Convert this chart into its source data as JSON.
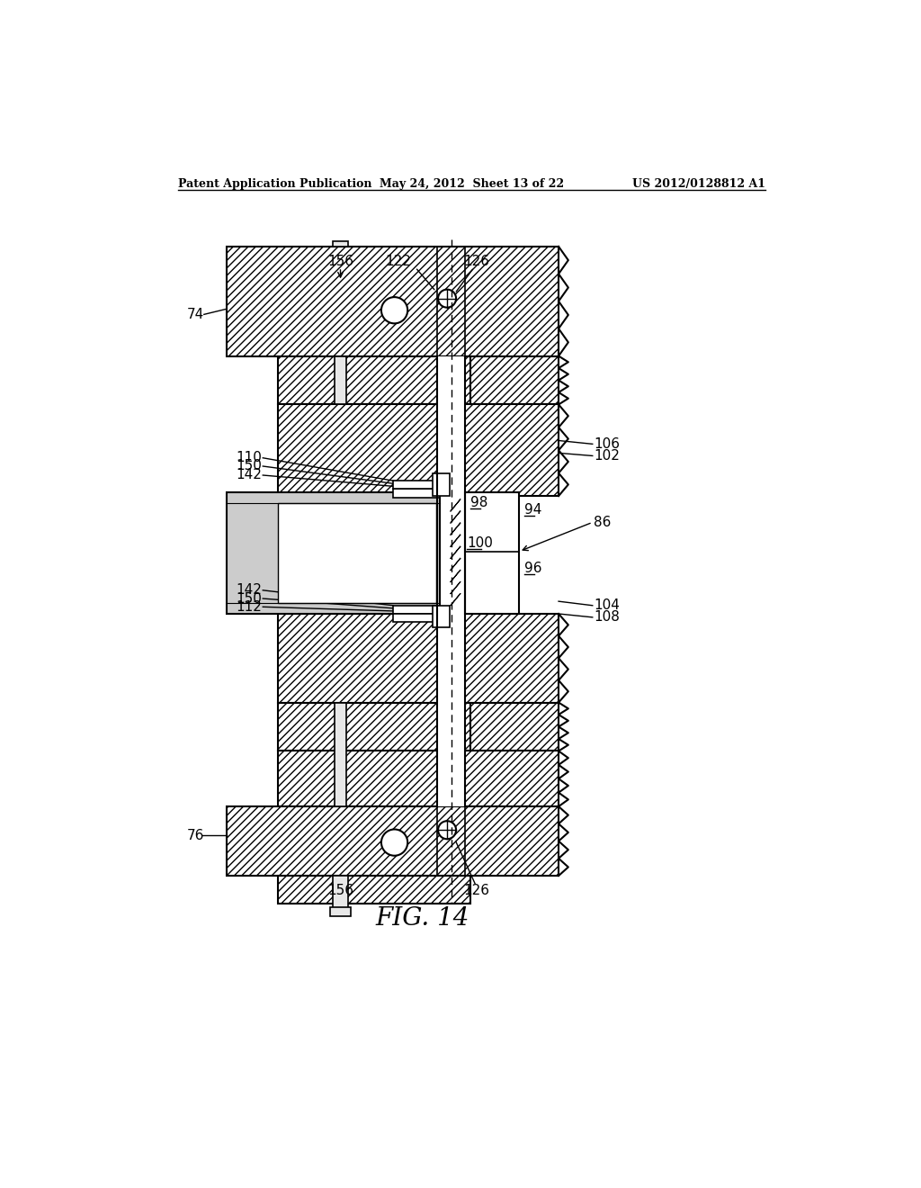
{
  "header_left": "Patent Application Publication",
  "header_center": "May 24, 2012  Sheet 13 of 22",
  "header_right": "US 2012/0128812 A1",
  "bg_color": "#ffffff",
  "fig_label": "FIG. 14",
  "fig_label_fontsize": 20,
  "header_fontsize": 9,
  "label_fontsize": 11
}
